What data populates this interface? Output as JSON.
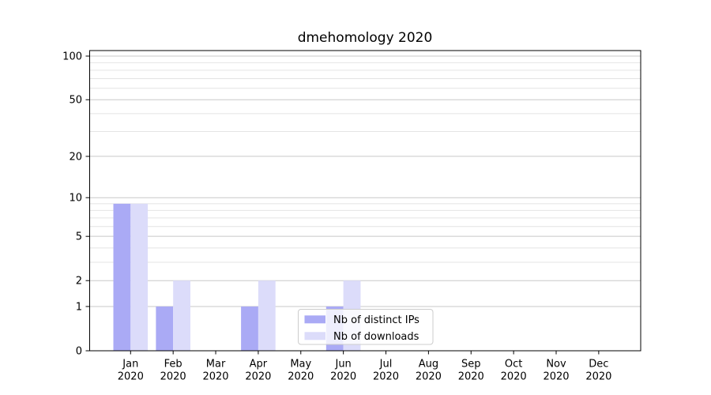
{
  "figure": {
    "background": "#ffffff"
  },
  "chart_data": {
    "type": "bar",
    "title": "dmehomology 2020",
    "x_categories": [
      {
        "month": "Jan",
        "year": "2020"
      },
      {
        "month": "Feb",
        "year": "2020"
      },
      {
        "month": "Mar",
        "year": "2020"
      },
      {
        "month": "Apr",
        "year": "2020"
      },
      {
        "month": "May",
        "year": "2020"
      },
      {
        "month": "Jun",
        "year": "2020"
      },
      {
        "month": "Jul",
        "year": "2020"
      },
      {
        "month": "Aug",
        "year": "2020"
      },
      {
        "month": "Sep",
        "year": "2020"
      },
      {
        "month": "Oct",
        "year": "2020"
      },
      {
        "month": "Nov",
        "year": "2020"
      },
      {
        "month": "Dec",
        "year": "2020"
      }
    ],
    "series": [
      {
        "name": "Nb of distinct IPs",
        "color": "#aaaaf5",
        "values": [
          9,
          1,
          0,
          1,
          0,
          1,
          0,
          0,
          0,
          0,
          0,
          0
        ]
      },
      {
        "name": "Nb of downloads",
        "color": "#dcdcfa",
        "values": [
          9,
          2,
          0,
          2,
          0,
          2,
          0,
          0,
          0,
          0,
          0,
          0
        ]
      }
    ],
    "y_scale": "log1p",
    "y_major_ticks": [
      0,
      1,
      2,
      5,
      10,
      20,
      50,
      100
    ],
    "y_minor_gridlines": [
      3,
      4,
      6,
      7,
      8,
      9,
      30,
      40,
      60,
      70,
      80,
      90
    ],
    "ylim": [
      0,
      109
    ],
    "grid": "horizontal",
    "legend_position": "lower center (inside plot)",
    "colors": {
      "grid_major": "#c8c8c8",
      "grid_minor": "#e4e4e4",
      "axis_line": "#000000",
      "tick_label": "#000000",
      "legend_border": "#cccccc",
      "legend_background": "rgba(255,255,255,0.8)"
    }
  }
}
